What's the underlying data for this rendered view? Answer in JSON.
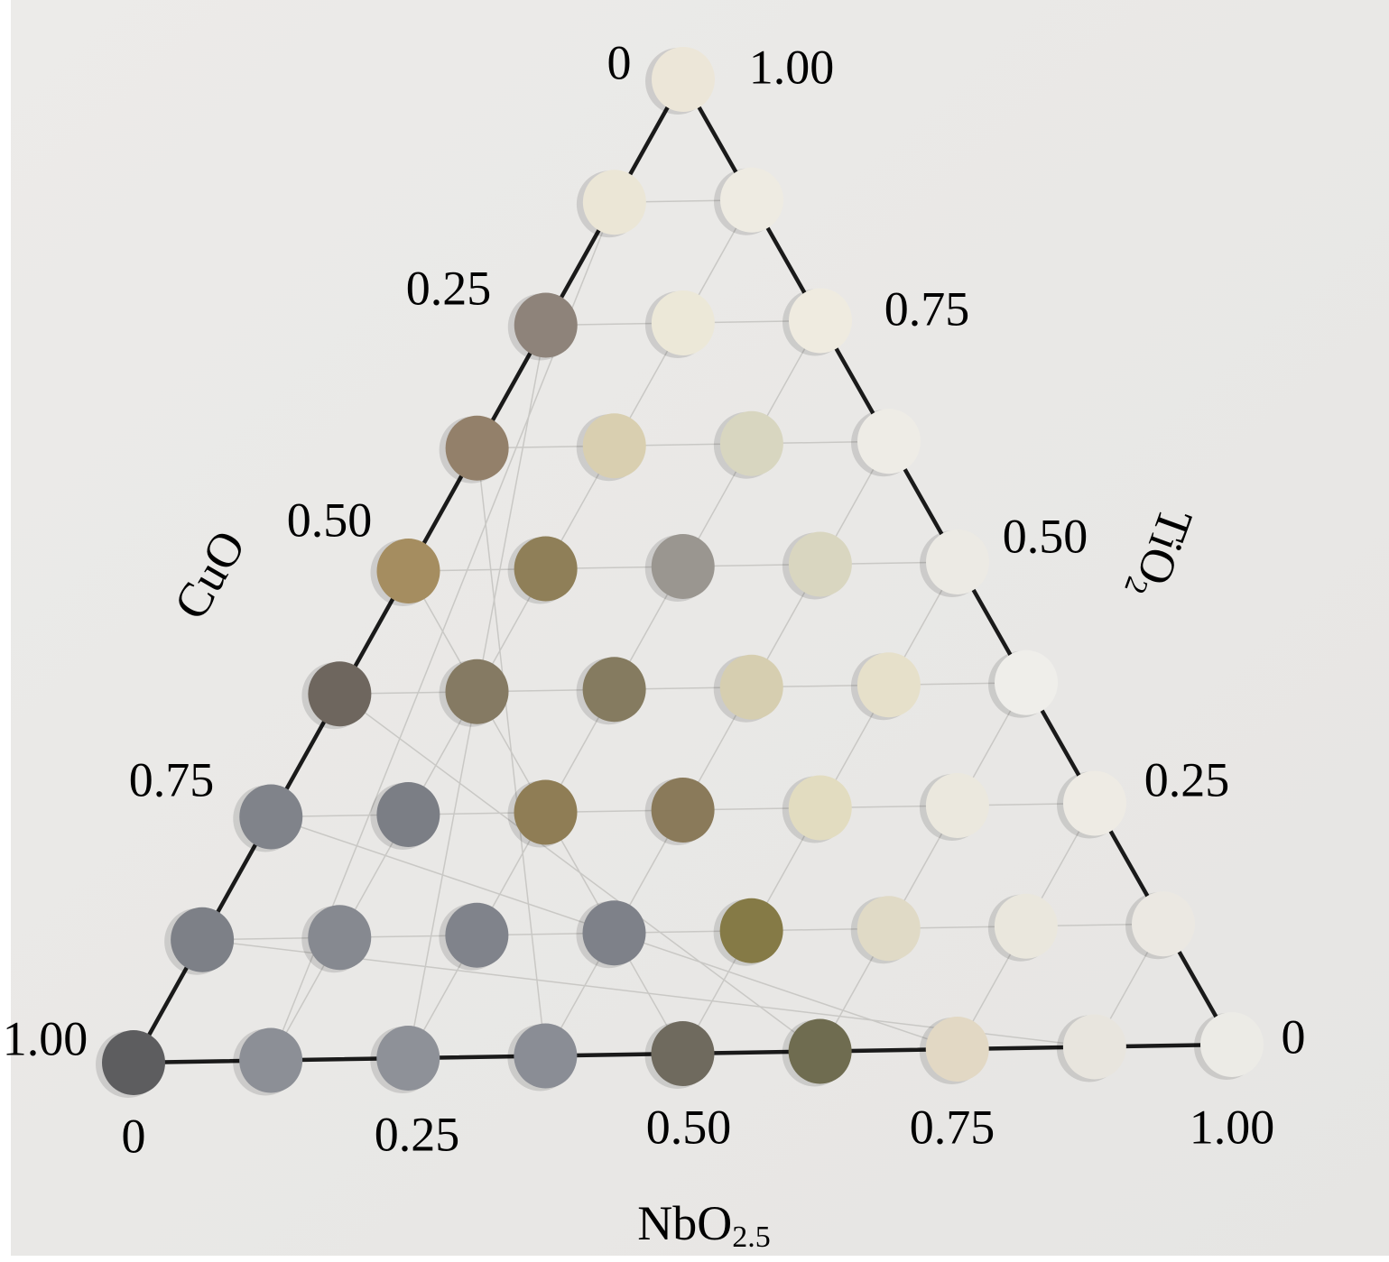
{
  "left_axis": {
    "title": "CuO",
    "ticks": [
      "0",
      "0.25",
      "0.50",
      "0.75",
      "1.00"
    ]
  },
  "right_axis": {
    "title": "TiO",
    "title_sub": "2",
    "ticks": [
      "1.00",
      "0.75",
      "0.50",
      "0.25",
      "0"
    ]
  },
  "bottom_axis": {
    "title": "NbO",
    "title_sub": "2.5",
    "ticks": [
      "0",
      "0.25",
      "0.50",
      "0.75",
      "1.00"
    ]
  }
}
